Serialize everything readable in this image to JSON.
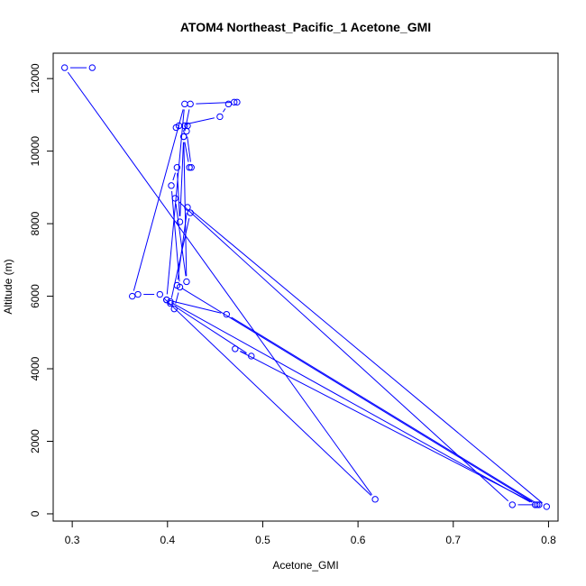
{
  "chart_data": {
    "type": "line",
    "title": "ATOM4 Northeast_Pacific_1 Acetone_GMI",
    "xlabel": "Acetone_GMI",
    "ylabel": "Altitude (m)",
    "xlim": [
      0.28,
      0.81
    ],
    "ylim": [
      -200,
      12700
    ],
    "xticks": [
      0.3,
      0.4,
      0.5,
      0.6,
      0.7,
      0.8
    ],
    "xtick_labels": [
      "0.3",
      "0.4",
      "0.5",
      "0.6",
      "0.7",
      "0.8"
    ],
    "yticks": [
      0,
      2000,
      4000,
      6000,
      8000,
      10000,
      12000
    ],
    "ytick_labels": [
      "0",
      "2000",
      "4000",
      "6000",
      "8000",
      "10000",
      "12000"
    ],
    "grid": false,
    "legend": "none",
    "line_style": "lines with open circle markers",
    "series": [
      {
        "color": "#0000ff",
        "x": [
          0.321,
          0.292,
          0.618,
          0.392,
          0.369,
          0.363,
          0.418,
          0.399,
          0.403,
          0.407,
          0.413,
          0.404,
          0.41,
          0.413,
          0.417,
          0.423,
          0.425,
          0.42,
          0.418,
          0.421,
          0.409,
          0.412,
          0.455,
          0.464,
          0.47,
          0.473,
          0.424,
          0.417,
          0.42,
          0.408,
          0.762,
          0.79,
          0.462,
          0.399,
          0.786,
          0.798,
          0.421,
          0.41,
          0.788,
          0.471,
          0.488,
          0.403,
          0.424
        ],
        "y": [
          12300,
          12300,
          400,
          6050,
          6050,
          6000,
          11300,
          5900,
          5850,
          5650,
          6250,
          9050,
          9550,
          8050,
          10400,
          9550,
          9550,
          10550,
          10700,
          10700,
          10650,
          10700,
          10950,
          11300,
          11350,
          11350,
          11300,
          10400,
          6400,
          8700,
          250,
          250,
          5500,
          5900,
          250,
          200,
          8450,
          6300,
          250,
          4550,
          4350,
          5800,
          8300
        ]
      }
    ]
  }
}
